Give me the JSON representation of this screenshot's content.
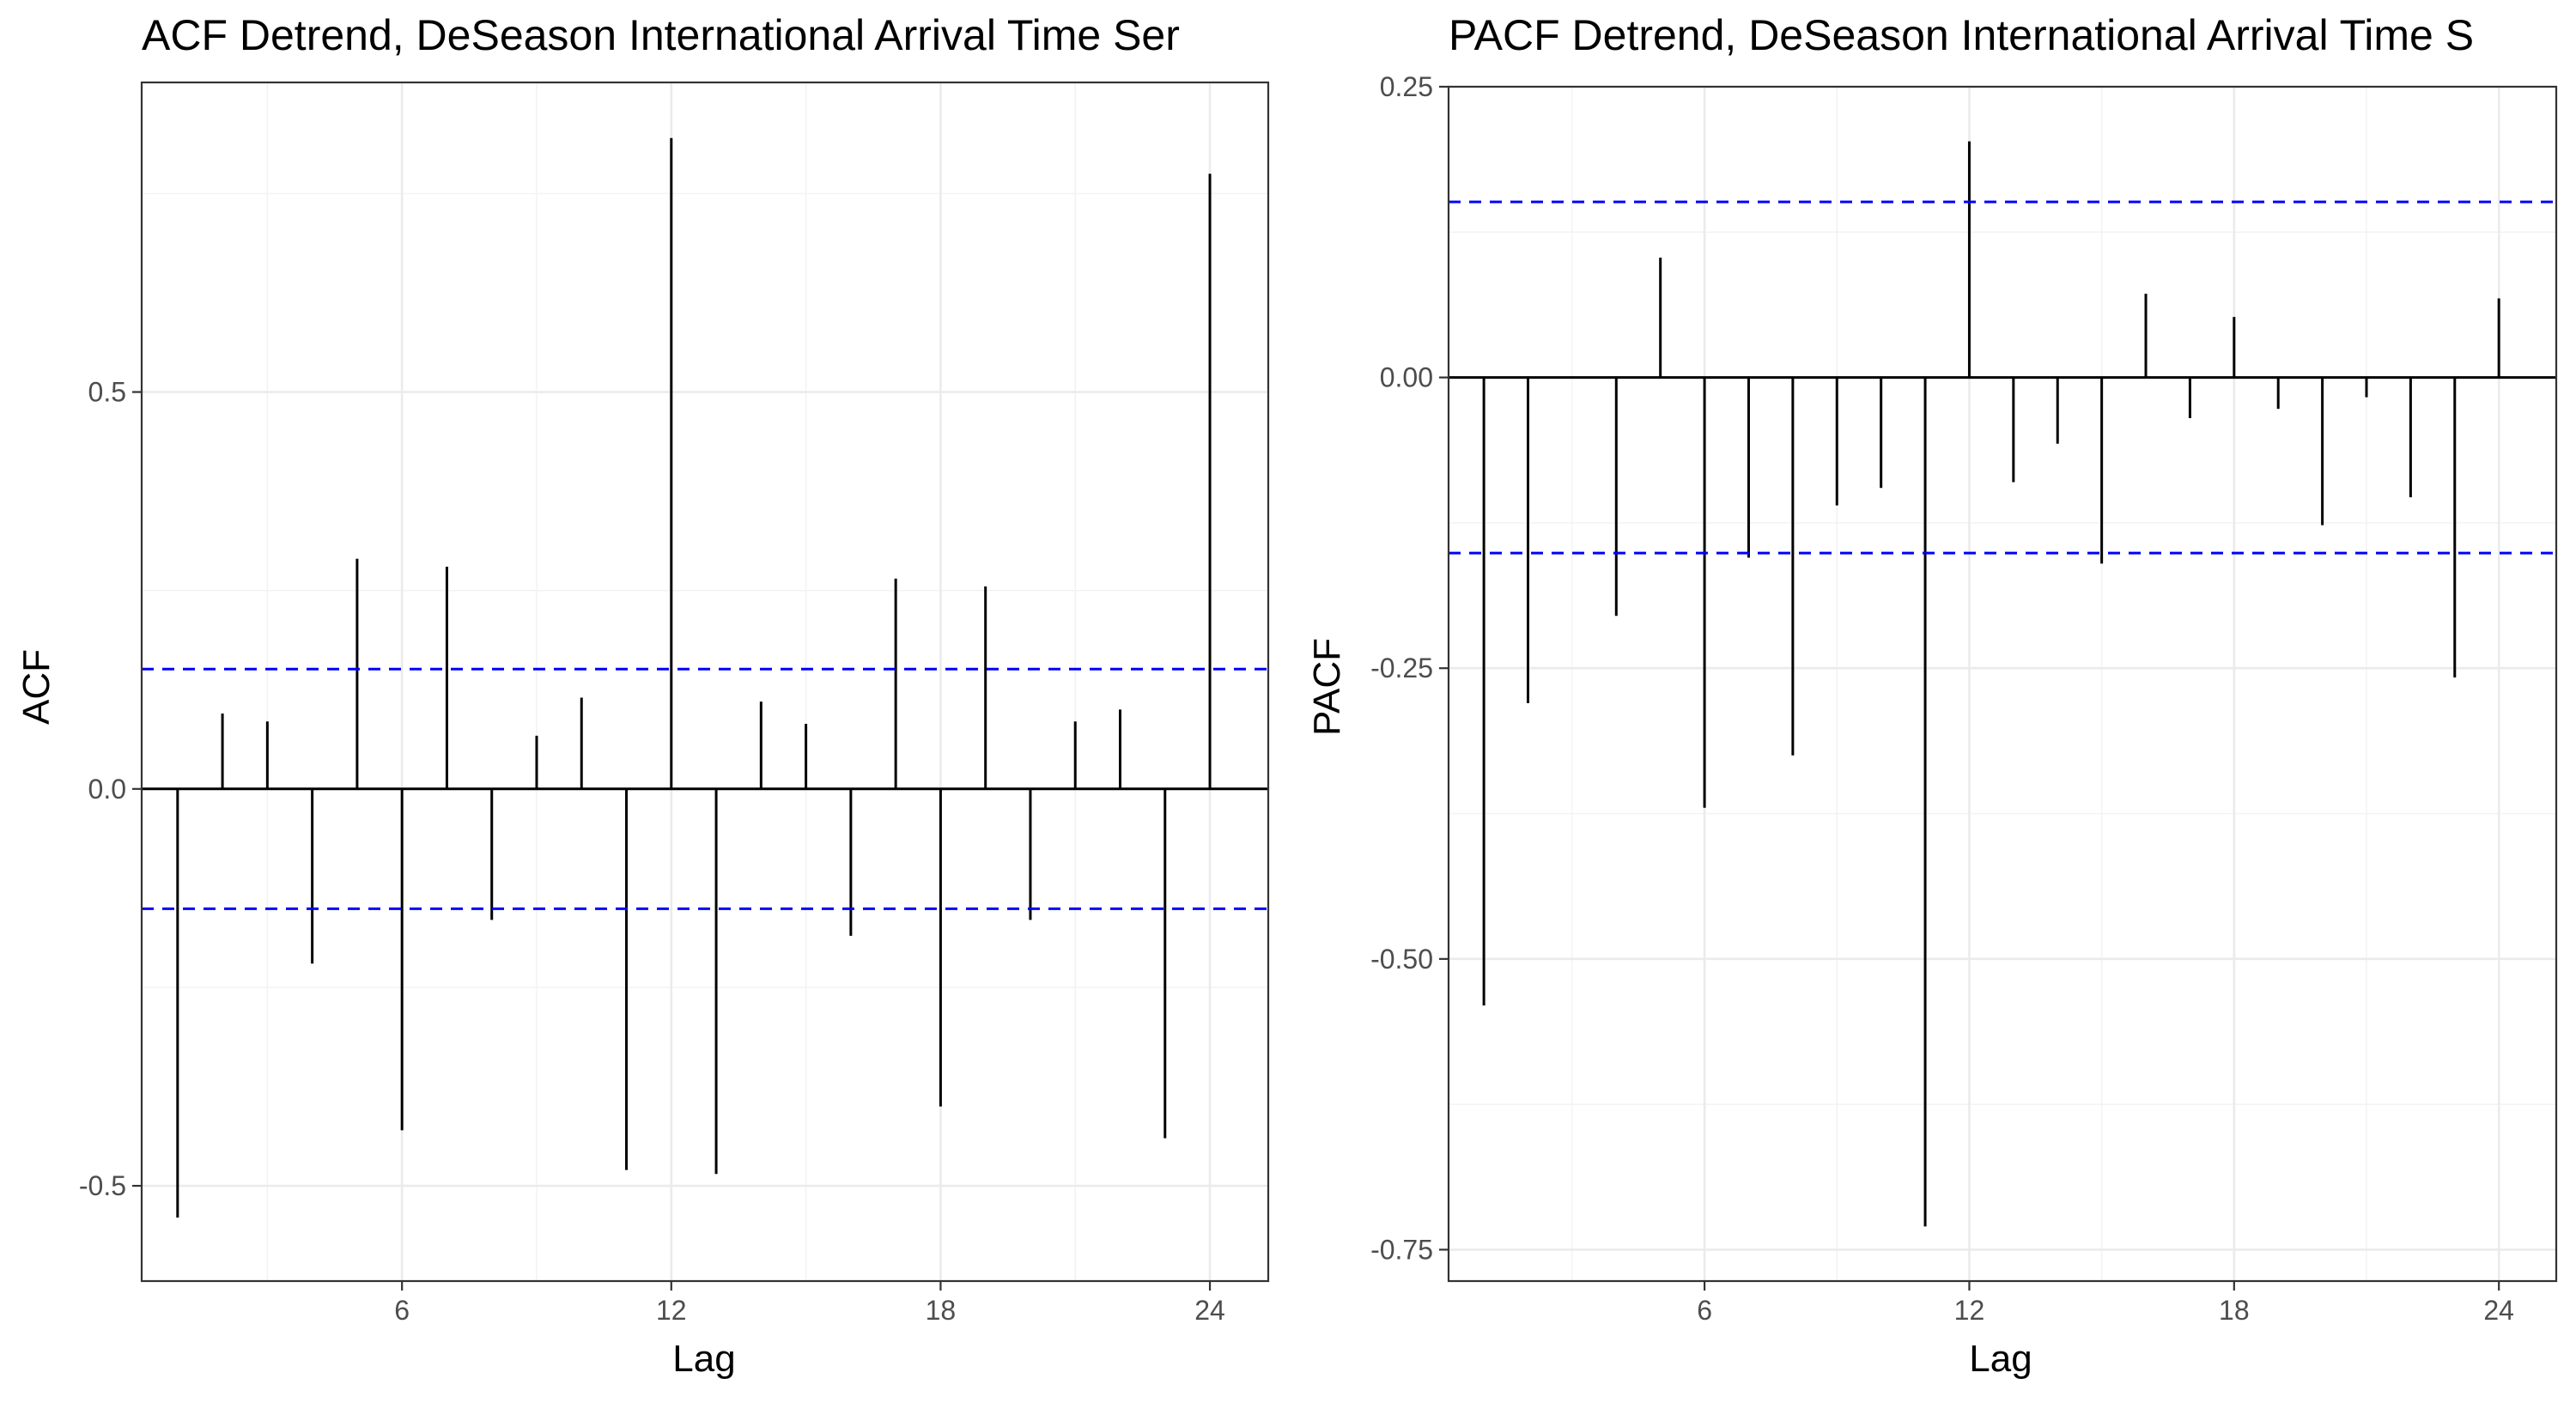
{
  "colors": {
    "bar": "#000000",
    "confidence_band": "#0000ff",
    "grid": "#ebebeb",
    "panel_border": "#333333"
  },
  "chart_data": [
    {
      "type": "bar",
      "title": "ACF Detrend, DeSeason International Arrival Time Ser",
      "xlabel": "Lag",
      "ylabel": "ACF",
      "xticks": [
        6,
        12,
        18,
        24
      ],
      "yticks": [
        -0.5,
        0.0,
        0.5
      ],
      "ytick_labels": [
        "-0.5",
        "0.0",
        "0.5"
      ],
      "xlim": [
        0.2,
        25.3
      ],
      "ylim": [
        -0.62,
        0.89
      ],
      "confidence_band": [
        -0.151,
        0.151
      ],
      "lags": [
        1,
        2,
        3,
        4,
        5,
        6,
        7,
        8,
        9,
        10,
        11,
        12,
        13,
        14,
        15,
        16,
        17,
        18,
        19,
        20,
        21,
        22,
        23,
        24
      ],
      "values": [
        -0.54,
        0.095,
        0.085,
        -0.22,
        0.29,
        -0.43,
        0.28,
        -0.165,
        0.067,
        0.115,
        -0.48,
        0.82,
        -0.485,
        0.11,
        0.082,
        -0.185,
        0.265,
        -0.4,
        0.255,
        -0.165,
        0.085,
        0.1,
        -0.44,
        0.775
      ],
      "grid": true
    },
    {
      "type": "bar",
      "title": "PACF Detrend, DeSeason International Arrival Time S",
      "xlabel": "Lag",
      "ylabel": "PACF",
      "xticks": [
        6,
        12,
        18,
        24
      ],
      "yticks": [
        -0.75,
        -0.5,
        -0.25,
        0.0,
        0.25
      ],
      "ytick_labels": [
        "-0.75",
        "-0.50",
        "-0.25",
        "0.00",
        "0.25"
      ],
      "xlim": [
        0.2,
        25.3
      ],
      "ylim": [
        -0.777,
        0.25
      ],
      "confidence_band": [
        -0.151,
        0.151
      ],
      "lags": [
        1,
        2,
        3,
        4,
        5,
        6,
        7,
        8,
        9,
        10,
        11,
        12,
        13,
        14,
        15,
        16,
        17,
        18,
        19,
        20,
        21,
        22,
        23,
        24
      ],
      "values": [
        -0.54,
        -0.28,
        0.0,
        -0.205,
        0.103,
        -0.37,
        -0.155,
        -0.325,
        -0.11,
        -0.095,
        -0.73,
        0.203,
        -0.09,
        -0.057,
        -0.16,
        0.072,
        -0.035,
        0.052,
        -0.027,
        -0.127,
        -0.017,
        -0.103,
        -0.258,
        0.068
      ],
      "grid": true
    }
  ]
}
